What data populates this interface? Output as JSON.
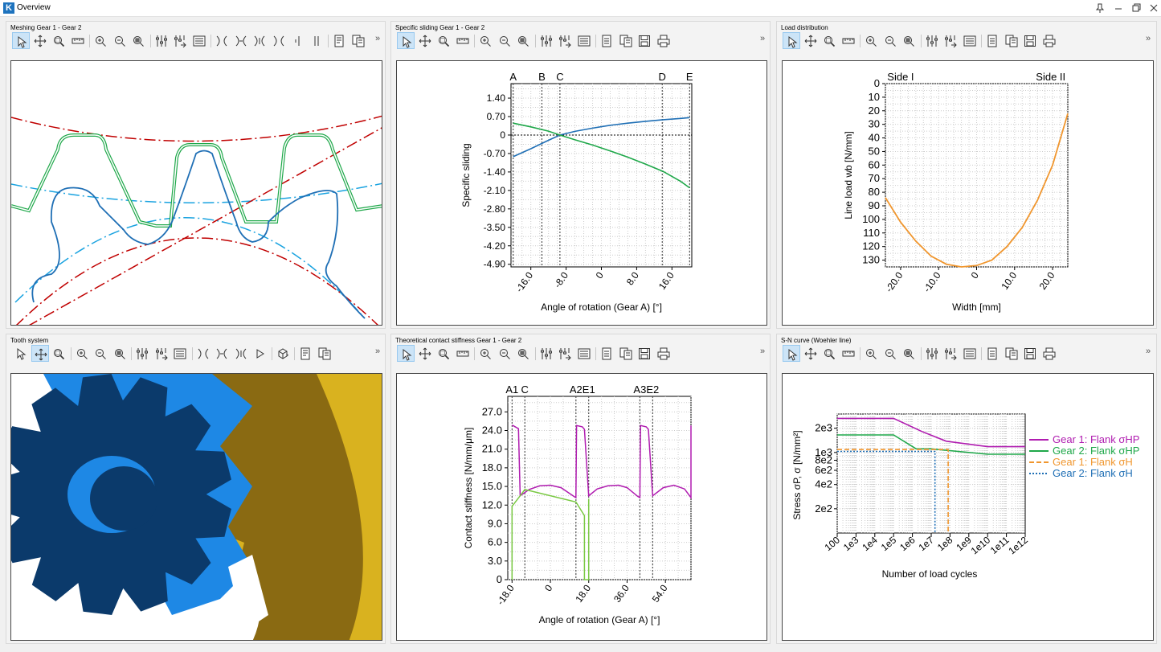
{
  "window": {
    "title": "Overview",
    "logo": "K"
  },
  "panels": {
    "meshing": {
      "title": "Meshing Gear 1 - Gear 2"
    },
    "sliding": {
      "title": "Specific sliding Gear 1 - Gear 2"
    },
    "load": {
      "title": "Load distribution"
    },
    "tooth": {
      "title": "Tooth system"
    },
    "stiffness": {
      "title": "Theoretical contact stiffness Gear 1 - Gear 2"
    },
    "sn": {
      "title": "S-N curve (Woehler line)"
    }
  },
  "colors": {
    "gear1": "#1f6fb5",
    "gear2": "#1fa84a",
    "red": "#c00000",
    "cyan": "#1aa3e0",
    "orange": "#f0962e",
    "magenta": "#b01cb0",
    "light_green": "#7ac943",
    "gold": "#d9b21f",
    "navy": "#0b3a6b",
    "blue3d": "#1e88e5"
  },
  "chart_data": [
    {
      "id": "specific_sliding",
      "type": "line",
      "xlabel": "Angle of rotation (Gear A) [°]",
      "ylabel": "Specific sliding",
      "xlim": [
        -20.5,
        20.5
      ],
      "ylim": [
        -5.0,
        1.95
      ],
      "xticks": [
        "-16.0",
        "-8.0",
        "0",
        "8.0",
        "16.0"
      ],
      "xtick_values": [
        -16,
        -8,
        0,
        8,
        16
      ],
      "yticks": [
        "1.40",
        "0.70",
        "0",
        "-0.70",
        "-1.40",
        "-2.10",
        "-2.80",
        "-3.50",
        "-4.20",
        "-4.90"
      ],
      "ytick_values": [
        1.4,
        0.7,
        0,
        -0.7,
        -1.4,
        -2.1,
        -2.8,
        -3.5,
        -4.2,
        -4.9
      ],
      "markers": [
        {
          "label": "A",
          "x": -20.0
        },
        {
          "label": "B",
          "x": -13.5
        },
        {
          "label": "C",
          "x": -9.4
        },
        {
          "label": "D",
          "x": 13.8
        },
        {
          "label": "E",
          "x": 20.0
        }
      ],
      "grid": true,
      "series": [
        {
          "color": "gear1",
          "x": [
            -20,
            -16,
            -12,
            -9.4,
            -6,
            -2,
            2,
            6,
            10,
            14,
            18,
            20
          ],
          "y": [
            -0.82,
            -0.52,
            -0.2,
            0,
            0.14,
            0.26,
            0.37,
            0.45,
            0.52,
            0.58,
            0.63,
            0.66
          ]
        },
        {
          "color": "gear2",
          "x": [
            -20,
            -16,
            -12,
            -9.4,
            -6,
            -2,
            2,
            6,
            10,
            14,
            18,
            20
          ],
          "y": [
            0.45,
            0.31,
            0.15,
            0,
            -0.18,
            -0.38,
            -0.6,
            -0.84,
            -1.1,
            -1.38,
            -1.76,
            -2.0
          ]
        }
      ]
    },
    {
      "id": "load_distribution",
      "type": "line",
      "xlabel": "Width [mm]",
      "ylabel": "Line load wb [N/mm]",
      "xlim": [
        -24,
        24
      ],
      "ylim": [
        0,
        135
      ],
      "y_inverted": true,
      "xticks": [
        "-20.0",
        "-10.0",
        "0",
        "10.0",
        "20.0"
      ],
      "xtick_values": [
        -20,
        -10,
        0,
        10,
        20
      ],
      "yticks": [
        "0",
        "10",
        "20",
        "30",
        "40",
        "50",
        "60",
        "70",
        "80",
        "90",
        "100",
        "110",
        "120",
        "130"
      ],
      "ytick_values": [
        0,
        10,
        20,
        30,
        40,
        50,
        60,
        70,
        80,
        90,
        100,
        110,
        120,
        130
      ],
      "top_labels": [
        {
          "label": "Side I",
          "x": -20
        },
        {
          "label": "Side II",
          "x": 19.5
        }
      ],
      "grid": true,
      "series": [
        {
          "color": "orange",
          "x": [
            -24,
            -20,
            -16,
            -12,
            -8,
            -4,
            0,
            4,
            8,
            12,
            16,
            20,
            24
          ],
          "y": [
            84,
            102,
            116,
            127,
            133,
            135,
            134,
            130,
            120,
            106,
            86,
            60,
            22
          ]
        }
      ]
    },
    {
      "id": "contact_stiffness",
      "type": "line",
      "xlabel": "Angle of rotation (Gear A) [°]",
      "ylabel": "Contact stiffness [N/mm/μm]",
      "xlim": [
        -20,
        66
      ],
      "ylim": [
        0,
        29.5
      ],
      "xticks": [
        "-18.0",
        "0",
        "18.0",
        "36.0",
        "54.0"
      ],
      "xtick_values": [
        -18,
        0,
        18,
        36,
        54
      ],
      "yticks": [
        "0",
        "3.0",
        "6.0",
        "9.0",
        "12.0",
        "15.0",
        "18.0",
        "21.0",
        "24.0",
        "27.0"
      ],
      "ytick_values": [
        0,
        3,
        6,
        9,
        12,
        15,
        18,
        21,
        24,
        27
      ],
      "markers": [
        {
          "label": "A1",
          "x": -18
        },
        {
          "label": "C",
          "x": -12
        },
        {
          "label": "A2",
          "x": 12
        },
        {
          "label": "E1",
          "x": 18
        },
        {
          "label": "A3",
          "x": 42
        },
        {
          "label": "E2",
          "x": 48
        }
      ],
      "grid": true,
      "series": [
        {
          "color": "magenta",
          "x": [
            -18,
            -17.6,
            -15,
            -14.2,
            -10,
            -5,
            0,
            5,
            11,
            12,
            12.3,
            15,
            16,
            18,
            22,
            27,
            32,
            36,
            41,
            42,
            42.3,
            45,
            46,
            48,
            53,
            58,
            63,
            66,
            66
          ],
          "y": [
            24.8,
            24.8,
            24.3,
            13.5,
            14.5,
            15.1,
            15.2,
            14.8,
            13.4,
            13.2,
            24.8,
            24.6,
            24.2,
            13.5,
            14.6,
            15.1,
            15.2,
            14.8,
            13.4,
            13.2,
            24.8,
            24.6,
            24.2,
            13.5,
            14.8,
            15.2,
            14.6,
            13.2,
            24.8
          ]
        },
        {
          "color": "light_green",
          "x": [
            -18,
            -18,
            -14.2,
            -12,
            12,
            16,
            16,
            18,
            18
          ],
          "y": [
            0,
            11.8,
            13.5,
            14.5,
            12.5,
            10.3,
            0,
            0,
            13.0
          ]
        }
      ]
    },
    {
      "id": "sn_curve",
      "type": "line",
      "xlabel": "Number of load cycles",
      "ylabel": "Stress σP, σ [N/mm²]",
      "x_scale": "log",
      "y_scale": "log",
      "xticks": [
        "100",
        "1e3",
        "1e4",
        "1e5",
        "1e6",
        "1e7",
        "1e8",
        "1e9",
        "1e10",
        "1e11",
        "1e12"
      ],
      "xtick_exponents": [
        2,
        3,
        4,
        5,
        6,
        7,
        8,
        9,
        10,
        11,
        12
      ],
      "yticks": [
        "2e3",
        "1e3",
        "8e2",
        "6e2",
        "4e2",
        "2e2"
      ],
      "ytick_values": [
        2000,
        1000,
        800,
        600,
        400,
        200
      ],
      "legend_position": "right",
      "grid": true,
      "series": [
        {
          "name": "Gear 1: Flank σHP",
          "color": "magenta",
          "style": "solid",
          "x": [
            2,
            5,
            6.5,
            7.8,
            10,
            12
          ],
          "y": [
            2650,
            2650,
            1820,
            1380,
            1180,
            1180
          ]
        },
        {
          "name": "Gear 2: Flank σHP",
          "color": "gear2",
          "style": "solid",
          "x": [
            2,
            5,
            6.2,
            7,
            10,
            12
          ],
          "y": [
            1650,
            1650,
            1110,
            1110,
            950,
            950
          ]
        },
        {
          "name": "Gear 1: Flank σH",
          "color": "orange",
          "style": "dashed",
          "x": [
            2,
            7.9,
            7.9
          ],
          "y": [
            1090,
            1090,
            100
          ]
        },
        {
          "name": "Gear 2: Flank σH",
          "color": "gear1",
          "style": "dotted",
          "x": [
            2,
            7.2,
            7.2
          ],
          "y": [
            1030,
            1030,
            100
          ]
        }
      ]
    }
  ],
  "icons": {
    "meshing": [
      "pointer-icon",
      "pan-icon",
      "zoom-window-icon",
      "measure-icon",
      "|",
      "zoom-in-icon",
      "zoom-out-icon",
      "zoom-fit-icon",
      "|",
      "settings-icon",
      "settings-apply-icon",
      "list-icon",
      "|",
      "mesh-gear1-icon",
      "mesh-gear2-icon",
      "mesh-both-icon",
      "mesh-reset-icon",
      "bar-left-icon",
      "bar-right-icon",
      "|",
      "report-icon",
      "copy-icon"
    ],
    "chart": [
      "pointer-icon",
      "pan-icon",
      "zoom-window-icon",
      "measure-icon",
      "|",
      "zoom-in-icon",
      "zoom-out-icon",
      "zoom-fit-icon",
      "|",
      "settings-icon",
      "settings-apply-icon",
      "list-icon",
      "|",
      "export-icon",
      "copy-icon",
      "save-icon",
      "print-icon"
    ],
    "tooth": [
      "pointer-icon",
      "pan-icon",
      "zoom-window-icon",
      "|",
      "zoom-in-icon",
      "zoom-out-icon",
      "zoom-fit-icon",
      "|",
      "settings-icon",
      "settings-apply-icon",
      "list-icon",
      "|",
      "mesh-gear1-icon",
      "mesh-gear2-icon",
      "mesh-both-icon",
      "play-icon",
      "|",
      "view-cube-icon",
      "|",
      "report-icon",
      "copy-icon"
    ]
  },
  "more_symbol": "»"
}
